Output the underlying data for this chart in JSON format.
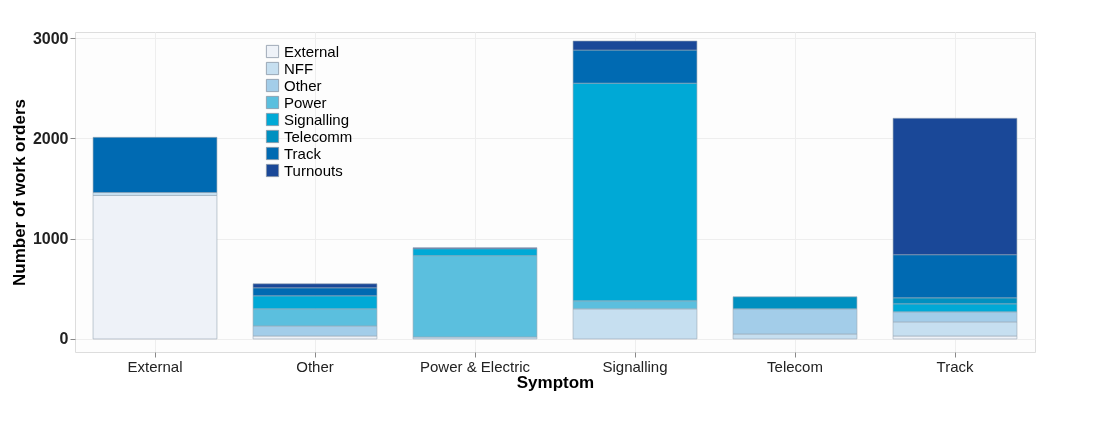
{
  "chart_data": {
    "type": "bar",
    "stacked": true,
    "xlabel": "Symptom",
    "ylabel": "Number of work orders",
    "categories": [
      "External",
      "Other",
      "Power & Electric",
      "Signalling",
      "Telecom",
      "Track"
    ],
    "ylim": [
      -130,
      3060
    ],
    "yticks": [
      0,
      1000,
      2000,
      3000
    ],
    "grid": true,
    "legend": "top left",
    "series": [
      {
        "name": "External",
        "color": "#eef2f8",
        "values": [
          1430,
          30,
          null,
          null,
          null,
          30
        ]
      },
      {
        "name": "NFF",
        "color": "#c6dff0",
        "values": [
          30,
          null,
          20,
          300,
          50,
          140
        ]
      },
      {
        "name": "Other",
        "color": "#a3cde9",
        "values": [
          null,
          100,
          null,
          null,
          250,
          100
        ]
      },
      {
        "name": "Power",
        "color": "#5bbfde",
        "values": [
          null,
          170,
          810,
          80,
          null,
          null
        ]
      },
      {
        "name": "Signalling",
        "color": "#00a9d6",
        "values": [
          null,
          130,
          70,
          2170,
          null,
          80
        ]
      },
      {
        "name": "Telecomm",
        "color": "#0090c0",
        "values": [
          null,
          null,
          null,
          null,
          120,
          60
        ]
      },
      {
        "name": "Track",
        "color": "#006ab2",
        "values": [
          550,
          80,
          null,
          330,
          null,
          430
        ]
      },
      {
        "name": "Turnouts",
        "color": "#1a4898",
        "values": [
          null,
          40,
          10,
          90,
          null,
          1360
        ]
      }
    ]
  }
}
